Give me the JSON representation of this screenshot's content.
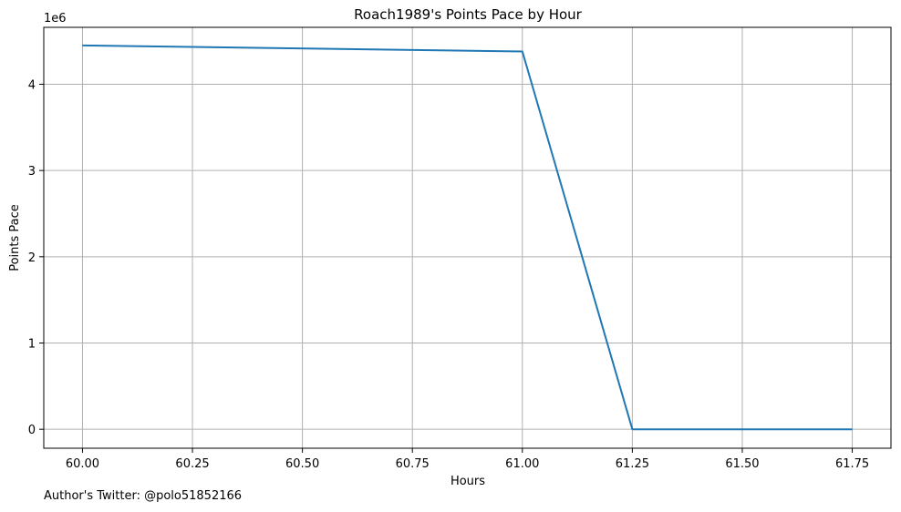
{
  "chart_data": {
    "type": "line",
    "title": "Roach1989's Points Pace by Hour",
    "xlabel": "Hours",
    "ylabel": "Points Pace",
    "y_offset_label": "1e6",
    "xlim": [
      59.912,
      61.838
    ],
    "ylim": [
      -0.22,
      4.66
    ],
    "x_ticks": [
      60.0,
      60.25,
      60.5,
      60.75,
      61.0,
      61.25,
      61.5,
      61.75
    ],
    "x_tick_labels": [
      "60.00",
      "60.25",
      "60.50",
      "60.75",
      "61.00",
      "61.25",
      "61.50",
      "61.75"
    ],
    "y_ticks": [
      0,
      1,
      2,
      3,
      4
    ],
    "y_tick_labels": [
      "0",
      "1",
      "2",
      "3",
      "4"
    ],
    "grid": true,
    "series": [
      {
        "color": "#1f77b4",
        "x": [
          60.0,
          61.0,
          61.25,
          61.5,
          61.75
        ],
        "y": [
          4.45,
          4.38,
          0.0,
          0.0,
          0.0
        ]
      }
    ]
  },
  "footer": {
    "note": "Author's Twitter: @polo51852166"
  }
}
